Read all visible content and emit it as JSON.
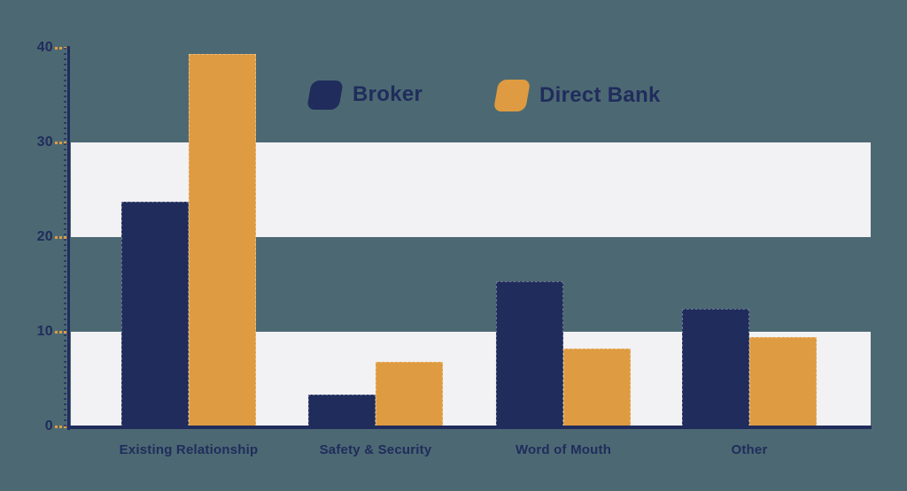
{
  "chart_data": {
    "type": "bar",
    "title": "",
    "categories": [
      "Existing Relationship",
      "Safety & Security",
      "Word of Mouth",
      "Other"
    ],
    "series": [
      {
        "name": "Broker",
        "color": "#202c5c",
        "values": [
          23.7,
          3.4,
          15.3,
          12.4
        ]
      },
      {
        "name": "Direct Bank",
        "color": "#df9b41",
        "values": [
          39.3,
          6.8,
          8.2,
          9.4
        ]
      }
    ],
    "ylim": [
      0,
      40
    ],
    "yticks": [
      0,
      10,
      20,
      30,
      40
    ],
    "xlabel": "",
    "ylabel": "",
    "grid": "alternating light horizontal bands covering 0-10 and 20-30",
    "legend_position": "top-center"
  },
  "colors": {
    "background": "#4c6973",
    "band": "#f2f1f3",
    "axis": "#202c5c",
    "tick_dash": "#df9b41",
    "broker": "#202c5c",
    "direct_bank": "#df9b41",
    "label_text": "#202c5c"
  }
}
